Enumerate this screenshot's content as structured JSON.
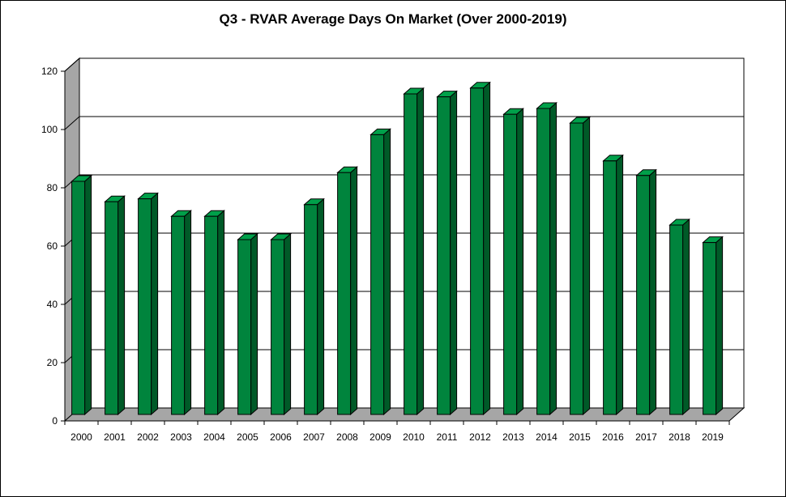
{
  "chart_data": {
    "type": "bar",
    "title": "Q3 - RVAR Average Days On Market (Over 2000-2019)",
    "xlabel": "",
    "ylabel": "",
    "categories": [
      "2000",
      "2001",
      "2002",
      "2003",
      "2004",
      "2005",
      "2006",
      "2007",
      "2008",
      "2009",
      "2010",
      "2011",
      "2012",
      "2013",
      "2014",
      "2015",
      "2016",
      "2017",
      "2018",
      "2019"
    ],
    "values": [
      80,
      73,
      74,
      68,
      68,
      60,
      60,
      72,
      83,
      96,
      110,
      109,
      112,
      103,
      105,
      100,
      87,
      82,
      65,
      59
    ],
    "ylim": [
      0,
      120
    ],
    "yticks": [
      0,
      20,
      40,
      60,
      80,
      100,
      120
    ],
    "grid": true,
    "legend": "none",
    "bar_color": "#00843d",
    "bar_top_color": "#00a04a",
    "bar_side_color": "#005a28",
    "wall_color": "#a6a6a6"
  }
}
